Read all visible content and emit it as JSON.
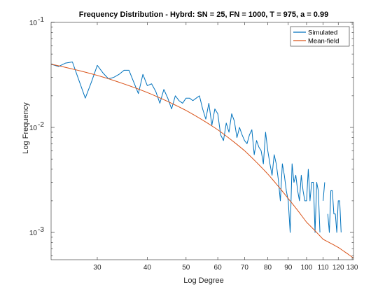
{
  "chart_data": {
    "type": "line",
    "title": "Frequency Distribution - Hybrd: SN = 25, FN = 1000, T = 975, a = 0.99",
    "xlabel": "Log Degree",
    "ylabel": "Log Frequency",
    "xscale": "log",
    "yscale": "log",
    "xlim": [
      23,
      131
    ],
    "ylim": [
      0.00055,
      0.1
    ],
    "grid": false,
    "legend": "top-right",
    "x_ticks": [
      30,
      40,
      50,
      60,
      70,
      80,
      90,
      100,
      110,
      120,
      130
    ],
    "x_tick_labels": [
      "30",
      "40",
      "50",
      "60",
      "70",
      "80",
      "90",
      "100",
      "110",
      "120",
      "130"
    ],
    "y_ticks": [
      {
        "value": 0.001,
        "base": "10",
        "exp": "-3"
      },
      {
        "value": 0.01,
        "base": "10",
        "exp": "-2"
      },
      {
        "value": 0.1,
        "base": "10",
        "exp": "-1"
      }
    ],
    "series": [
      {
        "name": "Simulated",
        "color": "#0072BD",
        "points": [
          [
            23,
            0.04
          ],
          [
            24,
            0.038
          ],
          [
            25,
            0.041
          ],
          [
            26,
            0.042
          ],
          [
            27,
            0.028
          ],
          [
            28,
            0.019
          ],
          [
            29,
            0.027
          ],
          [
            30,
            0.039
          ],
          [
            31,
            0.033
          ],
          [
            32,
            0.029
          ],
          [
            33,
            0.03
          ],
          [
            34,
            0.032
          ],
          [
            35,
            0.035
          ],
          [
            36,
            0.035
          ],
          [
            37,
            0.027
          ],
          [
            38,
            0.021
          ],
          [
            39,
            0.032
          ],
          [
            40,
            0.025
          ],
          [
            41,
            0.026
          ],
          [
            42,
            0.022
          ],
          [
            43,
            0.017
          ],
          [
            44,
            0.023
          ],
          [
            45,
            0.019
          ],
          [
            46,
            0.015
          ],
          [
            47,
            0.02
          ],
          [
            48,
            0.018
          ],
          [
            49,
            0.017
          ],
          [
            50,
            0.019
          ],
          [
            51,
            0.019
          ],
          [
            52,
            0.018
          ],
          [
            53,
            0.019
          ],
          [
            54,
            0.02
          ],
          [
            55,
            0.015
          ],
          [
            56,
            0.012
          ],
          [
            57,
            0.017
          ],
          [
            58,
            0.0105
          ],
          [
            59,
            0.015
          ],
          [
            60,
            0.0135
          ],
          [
            61,
            0.0085
          ],
          [
            62,
            0.0075
          ],
          [
            63,
            0.011
          ],
          [
            64,
            0.009
          ],
          [
            65,
            0.0135
          ],
          [
            66,
            0.0115
          ],
          [
            67,
            0.008
          ],
          [
            68,
            0.01
          ],
          [
            69,
            0.0085
          ],
          [
            70,
            0.0075
          ],
          [
            71,
            0.007
          ],
          [
            72,
            0.0085
          ],
          [
            73,
            0.0095
          ],
          [
            74,
            0.0055
          ],
          [
            75,
            0.0075
          ],
          [
            76,
            0.0065
          ],
          [
            77,
            0.006
          ],
          [
            78,
            0.0045
          ],
          [
            79,
            0.009
          ],
          [
            80,
            0.006
          ],
          [
            81,
            0.0045
          ],
          [
            82,
            0.0035
          ],
          [
            83,
            0.0055
          ],
          [
            84,
            0.0045
          ],
          [
            85,
            0.0032
          ],
          [
            86,
            0.002
          ],
          [
            87,
            0.0045
          ],
          [
            88,
            0.0035
          ],
          [
            89,
            0.0025
          ],
          [
            90,
            0.002
          ],
          [
            91,
            0.001
          ],
          [
            92,
            0.0045
          ],
          [
            93,
            0.003
          ],
          [
            94,
            0.0035
          ],
          [
            95,
            0.0025
          ],
          [
            96,
            0.002
          ],
          [
            97,
            0.0035
          ],
          [
            98,
            0.0025
          ],
          [
            99,
            0.002
          ],
          [
            100,
            0.002
          ],
          [
            101,
            0.004
          ],
          [
            102,
            0.002
          ],
          [
            103,
            0.003
          ],
          [
            104,
            0.003
          ],
          [
            105,
            0.001
          ],
          [
            106,
            0.003
          ],
          [
            107,
            0.0025
          ],
          [
            108,
            0.001
          ],
          [
            109,
            null
          ],
          [
            110,
            0.002
          ],
          [
            111,
            0.003
          ],
          [
            112,
            null
          ],
          [
            113,
            0.0015
          ],
          [
            114,
            0.001
          ],
          [
            115,
            0.0025
          ],
          [
            116,
            0.0025
          ],
          [
            117,
            0.0015
          ],
          [
            118,
            0.0015
          ],
          [
            119,
            0.001
          ],
          [
            120,
            0.002
          ],
          [
            121,
            0.002
          ],
          [
            122,
            0.001
          ]
        ]
      },
      {
        "name": "Mean-field",
        "color": "#D95319",
        "points": [
          [
            23,
            0.04
          ],
          [
            30,
            0.0313
          ],
          [
            40,
            0.0215
          ],
          [
            50,
            0.0145
          ],
          [
            60,
            0.0095
          ],
          [
            70,
            0.006
          ],
          [
            80,
            0.0036
          ],
          [
            90,
            0.0021
          ],
          [
            100,
            0.00125
          ],
          [
            110,
            0.00086
          ],
          [
            120,
            0.00072
          ],
          [
            131,
            0.00057
          ]
        ]
      }
    ]
  }
}
